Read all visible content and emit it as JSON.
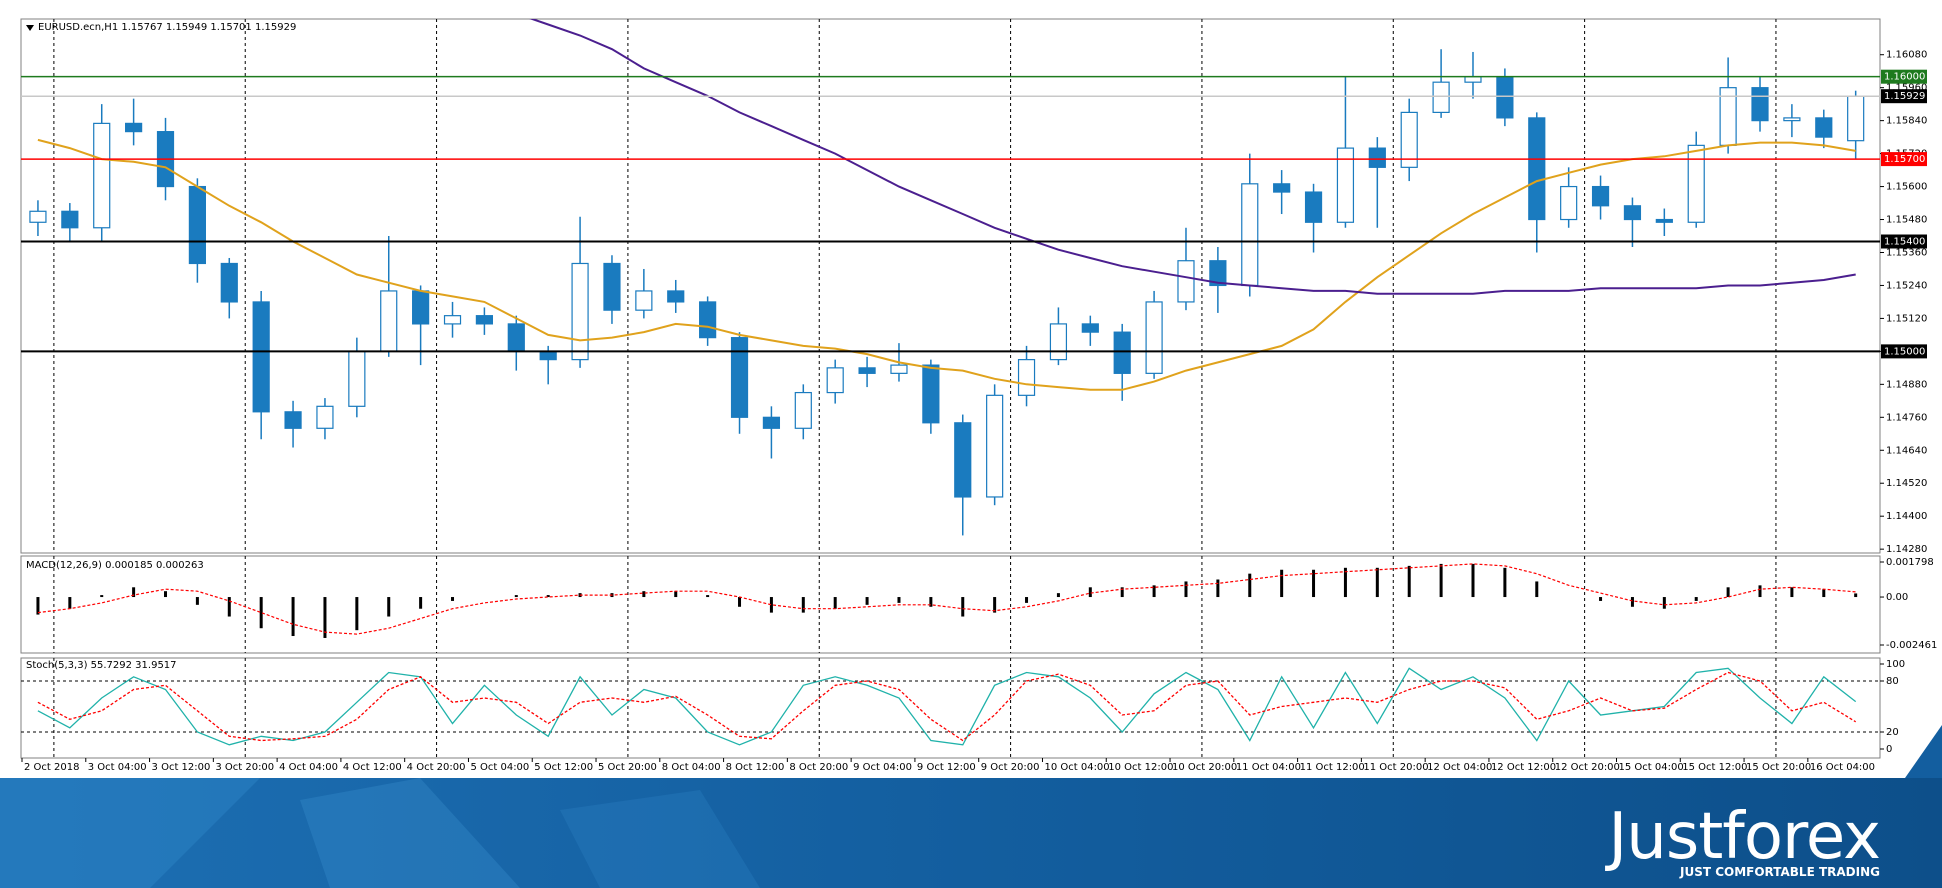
{
  "chart_data": [
    {
      "type": "candlestick",
      "title": "EURUSD.ecn,H1  1.15767 1.15949 1.15701 1.15929",
      "color": "#1a7bbf",
      "open": [
        1.1547,
        1.1551,
        1.1545,
        1.1583,
        1.158,
        1.156,
        1.1532,
        1.1518,
        1.1478,
        1.1472,
        1.148,
        1.15,
        1.1522,
        1.151,
        1.1513,
        1.151,
        1.15,
        1.1497,
        1.1532,
        1.1515,
        1.1522,
        1.1518,
        1.1505,
        1.1476,
        1.1472,
        1.1485,
        1.1494,
        1.1492,
        1.1495,
        1.1474,
        1.1447,
        1.1484,
        1.1497,
        1.151,
        1.1507,
        1.1492,
        1.1518,
        1.1533,
        1.1524,
        1.1561,
        1.1558,
        1.1547,
        1.1574,
        1.1567,
        1.1587,
        1.1598,
        1.16,
        1.1585,
        1.1548,
        1.156,
        1.1553,
        1.1548,
        1.1547,
        1.1575,
        1.1596,
        1.1584,
        1.1585,
        1.15767
      ],
      "high": [
        1.1555,
        1.1554,
        1.159,
        1.1592,
        1.1585,
        1.1563,
        1.1534,
        1.1522,
        1.1482,
        1.1483,
        1.1505,
        1.1542,
        1.1524,
        1.1518,
        1.1516,
        1.1513,
        1.1502,
        1.1549,
        1.1535,
        1.153,
        1.1526,
        1.152,
        1.1507,
        1.148,
        1.1488,
        1.1497,
        1.1498,
        1.1503,
        1.1497,
        1.1477,
        1.1488,
        1.1502,
        1.1516,
        1.1513,
        1.151,
        1.1522,
        1.1545,
        1.1538,
        1.1572,
        1.1566,
        1.1561,
        1.16,
        1.1578,
        1.1592,
        1.161,
        1.1609,
        1.1603,
        1.1587,
        1.1567,
        1.1564,
        1.1556,
        1.1552,
        1.158,
        1.1607,
        1.16,
        1.159,
        1.1588,
        1.15949
      ],
      "low": [
        1.1542,
        1.154,
        1.154,
        1.1575,
        1.1555,
        1.1525,
        1.1512,
        1.1468,
        1.1465,
        1.1468,
        1.1476,
        1.1498,
        1.1495,
        1.1505,
        1.1506,
        1.1493,
        1.1488,
        1.1494,
        1.151,
        1.1512,
        1.1514,
        1.1502,
        1.147,
        1.1461,
        1.1468,
        1.1481,
        1.1487,
        1.1489,
        1.147,
        1.1433,
        1.1444,
        1.148,
        1.1495,
        1.1502,
        1.1482,
        1.149,
        1.1515,
        1.1514,
        1.152,
        1.155,
        1.1536,
        1.1545,
        1.1545,
        1.1562,
        1.1585,
        1.1592,
        1.1582,
        1.1536,
        1.1545,
        1.1548,
        1.1538,
        1.1542,
        1.1545,
        1.1572,
        1.158,
        1.1578,
        1.1574,
        1.15701
      ],
      "close": [
        1.1551,
        1.1545,
        1.1583,
        1.158,
        1.156,
        1.1532,
        1.1518,
        1.1478,
        1.1472,
        1.148,
        1.15,
        1.1522,
        1.151,
        1.1513,
        1.151,
        1.15,
        1.1497,
        1.1532,
        1.1515,
        1.1522,
        1.1518,
        1.1505,
        1.1476,
        1.1472,
        1.1485,
        1.1494,
        1.1492,
        1.1495,
        1.1474,
        1.1447,
        1.1484,
        1.1497,
        1.151,
        1.1507,
        1.1492,
        1.1518,
        1.1533,
        1.1524,
        1.1561,
        1.1558,
        1.1547,
        1.1574,
        1.1567,
        1.1587,
        1.1598,
        1.16,
        1.1585,
        1.1548,
        1.156,
        1.1553,
        1.1548,
        1.1547,
        1.1575,
        1.1596,
        1.1584,
        1.1585,
        1.1578,
        1.15929
      ],
      "overlays": [
        {
          "color": "#e0a21c",
          "values": [
            1.1577,
            1.1574,
            1.157,
            1.1569,
            1.1567,
            1.156,
            1.1553,
            1.1547,
            1.154,
            1.1534,
            1.1528,
            1.1525,
            1.1522,
            1.152,
            1.1518,
            1.1512,
            1.1506,
            1.1504,
            1.1505,
            1.1507,
            1.151,
            1.1509,
            1.1506,
            1.1504,
            1.1502,
            1.1501,
            1.1499,
            1.1496,
            1.1494,
            1.1493,
            1.149,
            1.1488,
            1.1487,
            1.1486,
            1.1486,
            1.1489,
            1.1493,
            1.1496,
            1.1499,
            1.1502,
            1.1508,
            1.1518,
            1.1527,
            1.1535,
            1.1543,
            1.155,
            1.1556,
            1.1562,
            1.1565,
            1.1568,
            1.157,
            1.1571,
            1.1573,
            1.1575,
            1.1576,
            1.1576,
            1.1575,
            1.1573
          ]
        },
        {
          "color": "#4b1f8f",
          "values": [
            null,
            null,
            null,
            null,
            null,
            null,
            null,
            null,
            null,
            null,
            null,
            null,
            null,
            null,
            null,
            1.1623,
            1.1619,
            1.1615,
            1.161,
            1.1603,
            1.1598,
            1.1593,
            1.1587,
            1.1582,
            1.1577,
            1.1572,
            1.1566,
            1.156,
            1.1555,
            1.155,
            1.1545,
            1.1541,
            1.1537,
            1.1534,
            1.1531,
            1.1529,
            1.1527,
            1.1525,
            1.1524,
            1.1523,
            1.1522,
            1.1522,
            1.1521,
            1.1521,
            1.1521,
            1.1521,
            1.1522,
            1.1522,
            1.1522,
            1.1523,
            1.1523,
            1.1523,
            1.1523,
            1.1524,
            1.1524,
            1.1525,
            1.1526,
            1.1528
          ]
        }
      ],
      "levels": [
        {
          "value": 1.16,
          "label": "1.16000",
          "color": "#1e7a1e",
          "box_color": "#1e7a1e"
        },
        {
          "value": 1.15929,
          "label": "1.15929",
          "color": "#c8c8c8",
          "box_color": "#000000"
        },
        {
          "value": 1.157,
          "label": "1.15700",
          "color": "#ff0000",
          "box_color": "#ff0000"
        },
        {
          "value": 1.154,
          "label": "1.15400",
          "color": "#000000",
          "box_color": "#000000"
        },
        {
          "value": 1.15,
          "label": "1.15000",
          "color": "#000000",
          "box_color": "#000000"
        }
      ],
      "ylim": [
        1.14266,
        1.1621
      ],
      "yticks": [
        {
          "value": 1.1608,
          "label": "1.16080"
        },
        {
          "value": 1.1596,
          "label": "1.15960"
        },
        {
          "value": 1.1584,
          "label": "1.15840"
        },
        {
          "value": 1.1572,
          "label": "1.15720"
        },
        {
          "value": 1.156,
          "label": "1.15600"
        },
        {
          "value": 1.1548,
          "label": "1.15480"
        },
        {
          "value": 1.1536,
          "label": "1.15360"
        },
        {
          "value": 1.1524,
          "label": "1.15240"
        },
        {
          "value": 1.1512,
          "label": "1.15120"
        },
        {
          "value": 1.15,
          "label": "1.15000"
        },
        {
          "value": 1.1488,
          "label": "1.14880"
        },
        {
          "value": 1.1476,
          "label": "1.14760"
        },
        {
          "value": 1.1464,
          "label": "1.14640"
        },
        {
          "value": 1.1452,
          "label": "1.14520"
        },
        {
          "value": 1.144,
          "label": "1.14400"
        },
        {
          "value": 1.1428,
          "label": "1.14280"
        }
      ]
    },
    {
      "type": "bar",
      "title": "MACD(12,26,9) 0.000185 0.000263",
      "series": [
        {
          "color": "#000000",
          "style": "bar",
          "values": [
            -0.0009,
            -0.0006,
            0.0001,
            0.0005,
            0.0003,
            -0.0004,
            -0.001,
            -0.0016,
            -0.002,
            -0.0021,
            -0.0017,
            -0.001,
            -0.0006,
            -0.0002,
            0,
            0.0001,
            0.0001,
            0.0002,
            0.0002,
            0.0003,
            0.0003,
            0.0001,
            -0.0005,
            -0.0008,
            -0.0008,
            -0.0006,
            -0.0004,
            -0.0003,
            -0.0005,
            -0.001,
            -0.0008,
            -0.0003,
            0.0002,
            0.0005,
            0.0005,
            0.0006,
            0.0008,
            0.0009,
            0.0012,
            0.0014,
            0.0014,
            0.0015,
            0.0015,
            0.0016,
            0.0017,
            0.0017,
            0.0015,
            0.0008,
            0,
            -0.0002,
            -0.0005,
            -0.0006,
            -0.0002,
            0.0005,
            0.0006,
            0.0005,
            0.0004,
            0.000185
          ]
        },
        {
          "color": "#ff0000",
          "style": "dashed",
          "values": [
            -0.0008,
            -0.0006,
            -0.0003,
            0.0001,
            0.0004,
            0.0003,
            -0.0002,
            -0.0008,
            -0.0014,
            -0.0018,
            -0.0019,
            -0.0016,
            -0.0011,
            -0.0006,
            -0.0003,
            -0.0001,
            0,
            0.0001,
            0.0001,
            0.0002,
            0.0003,
            0.0003,
            0,
            -0.0004,
            -0.0006,
            -0.0006,
            -0.0005,
            -0.0004,
            -0.0004,
            -0.0006,
            -0.0007,
            -0.0005,
            -0.0002,
            0.0002,
            0.0004,
            0.0005,
            0.0006,
            0.0007,
            0.0009,
            0.0011,
            0.0012,
            0.0013,
            0.0014,
            0.0015,
            0.0016,
            0.0017,
            0.0016,
            0.0012,
            0.0006,
            0.0002,
            -0.0002,
            -0.0004,
            -0.0003,
            0,
            0.0004,
            0.0005,
            0.0004,
            0.000263
          ]
        }
      ],
      "ylim": [
        -0.002461,
        0.001798
      ],
      "yticks": [
        0.001798,
        {
          "value": 0,
          "label": "0.00"
        },
        -0.002461
      ]
    },
    {
      "type": "line",
      "title": "Stoch(5,3,3) 55.7292 31.9517",
      "series": [
        {
          "color": "#20b2aa",
          "style": "solid",
          "values": [
            45,
            25,
            60,
            85,
            70,
            20,
            5,
            15,
            10,
            20,
            55,
            90,
            85,
            30,
            75,
            40,
            15,
            85,
            40,
            70,
            60,
            20,
            5,
            20,
            75,
            85,
            75,
            60,
            10,
            5,
            75,
            90,
            85,
            60,
            20,
            65,
            90,
            70,
            10,
            85,
            25,
            90,
            30,
            95,
            70,
            85,
            60,
            10,
            80,
            40,
            45,
            50,
            90,
            95,
            60,
            30,
            85,
            55.7292
          ]
        },
        {
          "color": "#ff0000",
          "style": "dashed",
          "values": [
            55,
            35,
            45,
            70,
            75,
            45,
            15,
            10,
            12,
            15,
            35,
            70,
            85,
            55,
            60,
            55,
            30,
            55,
            60,
            55,
            62,
            40,
            15,
            12,
            45,
            75,
            80,
            70,
            35,
            10,
            40,
            80,
            88,
            75,
            40,
            45,
            75,
            80,
            40,
            50,
            55,
            60,
            55,
            70,
            80,
            80,
            72,
            35,
            45,
            60,
            45,
            48,
            70,
            90,
            80,
            45,
            55,
            31.9517
          ]
        }
      ],
      "levels": [
        80,
        20
      ],
      "ylim": [
        0,
        100
      ],
      "yticks": [
        100,
        80,
        20,
        0
      ],
      "xticks": [
        {
          "value": 0,
          "label": "2 Oct 2018"
        },
        {
          "value": 2,
          "label": "3 Oct 04:00"
        },
        {
          "value": 4,
          "label": "3 Oct 12:00"
        },
        {
          "value": 6,
          "label": "3 Oct 20:00"
        },
        {
          "value": 8,
          "label": "4 Oct 04:00"
        },
        {
          "value": 10,
          "label": "4 Oct 12:00"
        },
        {
          "value": 12,
          "label": "4 Oct 20:00"
        },
        {
          "value": 14,
          "label": "5 Oct 04:00"
        },
        {
          "value": 16,
          "label": "5 Oct 12:00"
        },
        {
          "value": 18,
          "label": "5 Oct 20:00"
        },
        {
          "value": 20,
          "label": "8 Oct 04:00"
        },
        {
          "value": 22,
          "label": "8 Oct 12:00"
        },
        {
          "value": 24,
          "label": "8 Oct 20:00"
        },
        {
          "value": 26,
          "label": "9 Oct 04:00"
        },
        {
          "value": 28,
          "label": "9 Oct 12:00"
        },
        {
          "value": 30,
          "label": "9 Oct 20:00"
        },
        {
          "value": 32,
          "label": "10 Oct 04:00"
        },
        {
          "value": 34,
          "label": "10 Oct 12:00"
        },
        {
          "value": 36,
          "label": "10 Oct 20:00"
        },
        {
          "value": 38,
          "label": "11 Oct 04:00"
        },
        {
          "value": 40,
          "label": "11 Oct 12:00"
        },
        {
          "value": 42,
          "label": "11 Oct 20:00"
        },
        {
          "value": 44,
          "label": "12 Oct 04:00"
        },
        {
          "value": 46,
          "label": "12 Oct 12:00"
        },
        {
          "value": 48,
          "label": "12 Oct 20:00"
        },
        {
          "value": 50,
          "label": "15 Oct 04:00"
        },
        {
          "value": 52,
          "label": "15 Oct 12:00"
        },
        {
          "value": 54,
          "label": "15 Oct 20:00"
        },
        {
          "value": 56,
          "label": "16 Oct 04:00"
        }
      ]
    }
  ],
  "brand": {
    "name": "Justforex",
    "tagline": "JUST COMFORTABLE TRADING"
  }
}
